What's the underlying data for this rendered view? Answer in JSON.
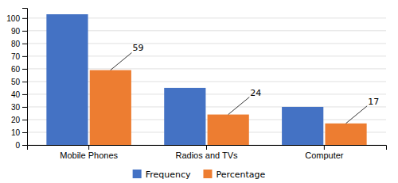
{
  "chart_data": {
    "type": "bar",
    "categories": [
      "Mobile Phones",
      "Radios and TVs",
      "Computer"
    ],
    "series": [
      {
        "name": "Frequency",
        "color": "#4472C4",
        "values": [
          103,
          45,
          30
        ]
      },
      {
        "name": "Percentage",
        "color": "#ED7D31",
        "values": [
          59,
          24,
          17
        ],
        "data_labels": true
      }
    ],
    "ylim": [
      0,
      108
    ],
    "yticks": [
      0,
      10,
      20,
      30,
      40,
      50,
      60,
      70,
      80,
      90,
      100
    ],
    "grid": true
  }
}
